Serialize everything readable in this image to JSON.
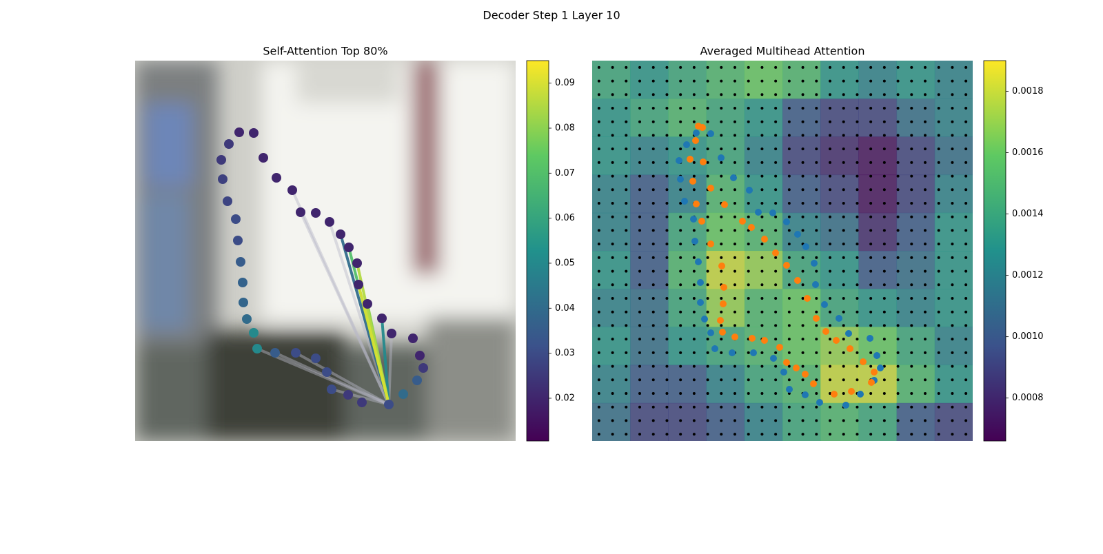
{
  "title": "Decoder Step 1 Layer 10",
  "chart_data": [
    {
      "type": "scatter",
      "title": "Self-Attention Top 80%",
      "colormap": "viridis",
      "xlim": [
        0,
        552
      ],
      "ylim": [
        552,
        0
      ],
      "x": [
        151,
        172,
        136,
        125,
        127,
        134,
        146,
        149,
        153,
        156,
        157,
        162,
        172,
        177,
        203,
        233,
        262,
        278,
        285,
        309,
        329,
        368,
        389,
        409,
        418,
        413,
        403,
        372,
        358,
        337,
        324,
        322,
        310,
        298,
        282,
        262,
        240,
        228,
        205,
        186
      ],
      "y": [
        104,
        105,
        121,
        144,
        172,
        204,
        230,
        261,
        292,
        322,
        351,
        375,
        395,
        418,
        424,
        424,
        432,
        452,
        477,
        485,
        496,
        499,
        484,
        464,
        446,
        428,
        403,
        396,
        374,
        353,
        325,
        294,
        271,
        252,
        234,
        221,
        220,
        188,
        170,
        141
      ],
      "color_values": [
        0.02,
        0.02,
        0.025,
        0.025,
        0.027,
        0.028,
        0.03,
        0.03,
        0.035,
        0.037,
        0.038,
        0.04,
        0.05,
        0.05,
        0.035,
        0.03,
        0.03,
        0.03,
        0.03,
        0.025,
        0.025,
        0.03,
        0.04,
        0.035,
        0.025,
        0.02,
        0.02,
        0.02,
        0.02,
        0.02,
        0.02,
        0.02,
        0.02,
        0.02,
        0.02,
        0.02,
        0.02,
        0.02,
        0.02,
        0.02
      ],
      "links": {
        "from": 21,
        "to": [
          13,
          14,
          15,
          18,
          37,
          36,
          34,
          27,
          33,
          28,
          32,
          29,
          31,
          30
        ],
        "values": [
          0.015,
          0.015,
          0.015,
          0.015,
          0.015,
          0.015,
          0.02,
          0.03,
          0.04,
          0.05,
          0.07,
          0.08,
          0.085,
          0.09
        ]
      },
      "clim": [
        0.0105,
        0.095
      ],
      "cticks": [
        0.02,
        0.03,
        0.04,
        0.05,
        0.06,
        0.07,
        0.08,
        0.09
      ]
    },
    {
      "type": "heatmap",
      "title": "Averaged Multihead Attention",
      "colormap": "viridis",
      "xlim": [
        0,
        552
      ],
      "ylim": [
        552,
        0
      ],
      "query_grid": 28,
      "values": [
        [
          0.0014,
          0.0013,
          0.0014,
          0.0015,
          0.0016,
          0.0015,
          0.0013,
          0.0012,
          0.0013,
          0.0012
        ],
        [
          0.0013,
          0.0014,
          0.0015,
          0.0014,
          0.0013,
          0.001,
          0.0009,
          0.0009,
          0.0011,
          0.0012
        ],
        [
          0.0013,
          0.0012,
          0.0013,
          0.0014,
          0.0012,
          0.0009,
          0.0008,
          0.0007,
          0.0009,
          0.0011
        ],
        [
          0.0012,
          0.001,
          0.0012,
          0.0015,
          0.0013,
          0.001,
          0.0009,
          0.0007,
          0.0009,
          0.0012
        ],
        [
          0.0012,
          0.001,
          0.0014,
          0.0016,
          0.0015,
          0.0012,
          0.0011,
          0.0008,
          0.001,
          0.0013
        ],
        [
          0.0013,
          0.001,
          0.0015,
          0.0018,
          0.0017,
          0.0014,
          0.0013,
          0.001,
          0.0011,
          0.0013
        ],
        [
          0.0012,
          0.0011,
          0.0014,
          0.0017,
          0.0015,
          0.0016,
          0.0014,
          0.0013,
          0.0012,
          0.0013
        ],
        [
          0.0013,
          0.0011,
          0.0013,
          0.0014,
          0.0015,
          0.0016,
          0.0017,
          0.0016,
          0.0014,
          0.0012
        ],
        [
          0.0012,
          0.001,
          0.001,
          0.0012,
          0.0014,
          0.0015,
          0.0018,
          0.0018,
          0.0015,
          0.0013
        ],
        [
          0.0011,
          0.0009,
          0.0009,
          0.001,
          0.0012,
          0.0014,
          0.0015,
          0.0014,
          0.001,
          0.0009
        ]
      ],
      "series": [
        {
          "color": "#1f77b4",
          "x": [
            151,
            172,
            137,
            126,
            128,
            134,
            147,
            149,
            154,
            157,
            157,
            163,
            172,
            178,
            203,
            234,
            263,
            278,
            286,
            309,
            330,
            368,
            389,
            409,
            418,
            413,
            403,
            372,
            358,
            337,
            324,
            322,
            310,
            298,
            282,
            262,
            241,
            228,
            205,
            187
          ],
          "y": [
            105,
            106,
            122,
            145,
            172,
            204,
            230,
            262,
            292,
            322,
            351,
            375,
            395,
            418,
            424,
            424,
            432,
            452,
            477,
            485,
            496,
            500,
            484,
            464,
            446,
            428,
            403,
            396,
            374,
            354,
            325,
            294,
            270,
            252,
            234,
            221,
            220,
            188,
            170,
            141
          ]
        },
        {
          "color": "#ff7f0e",
          "x": [
            154,
            160,
            150,
            142,
            161,
            146,
            172,
            151,
            192,
            159,
            218,
            231,
            172,
            250,
            266,
            282,
            188,
            298,
            191,
            312,
            190,
            325,
            186,
            189,
            339,
            207,
            232,
            250,
            354,
            272,
            374,
            282,
            393,
            296,
            409,
            309,
            405,
            321,
            351,
            376
          ],
          "y": [
            95,
            97,
            116,
            143,
            147,
            175,
            185,
            208,
            209,
            233,
            233,
            242,
            266,
            259,
            279,
            297,
            298,
            319,
            329,
            345,
            353,
            374,
            377,
            394,
            393,
            401,
            403,
            406,
            406,
            416,
            418,
            438,
            437,
            446,
            452,
            455,
            467,
            469,
            484,
            480
          ]
        }
      ],
      "clim": [
        0.00066,
        0.0019
      ],
      "cticks": [
        0.0008,
        {
          "value": 0.001,
          "label": "0.0010"
        },
        0.0012,
        0.0014,
        0.0016,
        0.0018
      ]
    }
  ]
}
